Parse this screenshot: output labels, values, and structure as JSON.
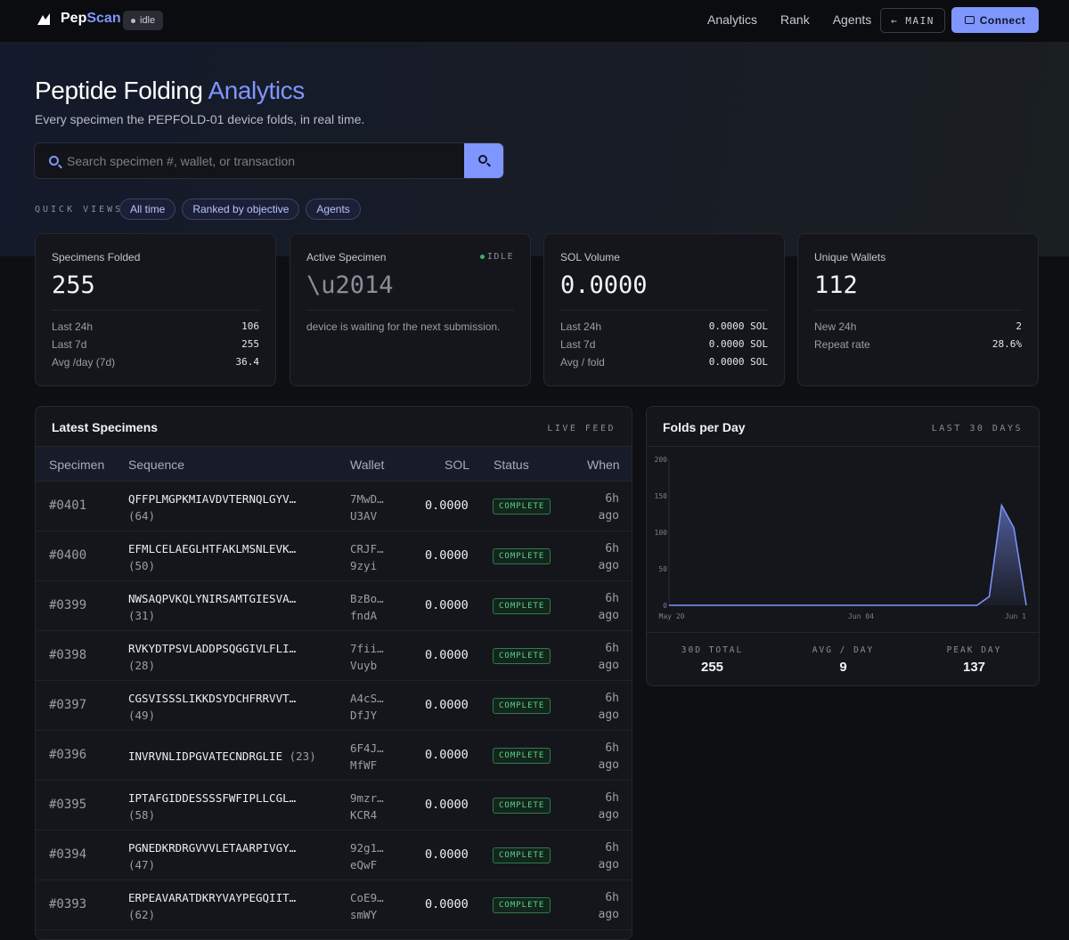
{
  "nav": {
    "brand": "Pep",
    "brand_accent": "Scan",
    "status": "idle",
    "links": [
      "Analytics",
      "Rank",
      "Agents"
    ],
    "main_label": "← MAIN",
    "connect_label": "Connect"
  },
  "hero": {
    "title": "Peptide Folding",
    "title_accent": "Analytics",
    "subtitle": "Every specimen the PEPFOLD-01 device folds, in real time.",
    "search_placeholder": "Search specimen #, wallet, or transaction",
    "quick_views_label": "QUICK VIEWS",
    "chips": [
      "All time",
      "Ranked by objective",
      "Agents"
    ]
  },
  "cards": {
    "folded": {
      "label": "Specimens Folded",
      "value": "255",
      "rows": [
        [
          "Last 24h",
          "106"
        ],
        [
          "Last 7d",
          "255"
        ],
        [
          "Avg /day (7d)",
          "36.4"
        ]
      ]
    },
    "active": {
      "label": "Active Specimen",
      "tag": "IDLE",
      "value": "\\u2014",
      "note": "device is waiting for the next submission."
    },
    "sol": {
      "label": "SOL Volume",
      "value": "0.0000",
      "rows": [
        [
          "Last 24h",
          "0.0000 SOL"
        ],
        [
          "Last 7d",
          "0.0000 SOL"
        ],
        [
          "Avg / fold",
          "0.0000 SOL"
        ]
      ]
    },
    "wallets": {
      "label": "Unique Wallets",
      "value": "112",
      "rows": [
        [
          "New 24h",
          "2"
        ],
        [
          "Repeat rate",
          "28.6%"
        ]
      ]
    }
  },
  "table": {
    "title": "Latest Specimens",
    "tag": "LIVE FEED",
    "headers": [
      "Specimen",
      "Sequence",
      "Wallet",
      "SOL",
      "Status",
      "When"
    ],
    "rows": [
      {
        "id": "#0401",
        "seq": "QFFPLMGPKMIAVDVTERNQLGYV…",
        "len": "(64)",
        "w1": "7MwD…",
        "w2": "U3AV",
        "sol": "0.0000",
        "status": "COMPLETE",
        "t1": "6h",
        "t2": "ago"
      },
      {
        "id": "#0400",
        "seq": "EFMLCELAEGLHTFAKLMSNLEVK…",
        "len": "(50)",
        "w1": "CRJF…",
        "w2": "9zyi",
        "sol": "0.0000",
        "status": "COMPLETE",
        "t1": "6h",
        "t2": "ago"
      },
      {
        "id": "#0399",
        "seq": "NWSAQPVKQLYNIRSAMTGIESVA…",
        "len": "(31)",
        "w1": "BzBo…",
        "w2": "fndA",
        "sol": "0.0000",
        "status": "COMPLETE",
        "t1": "6h",
        "t2": "ago"
      },
      {
        "id": "#0398",
        "seq": "RVKYDTPSVLADDPSQGGIVLFLI…",
        "len": "(28)",
        "w1": "7fii…",
        "w2": "Vuyb",
        "sol": "0.0000",
        "status": "COMPLETE",
        "t1": "6h",
        "t2": "ago"
      },
      {
        "id": "#0397",
        "seq": "CGSVISSSLIKKDSYDCHFRRVVT…",
        "len": "(49)",
        "w1": "A4cS…",
        "w2": "DfJY",
        "sol": "0.0000",
        "status": "COMPLETE",
        "t1": "6h",
        "t2": "ago"
      },
      {
        "id": "#0396",
        "seq": "INVRVNLIDPGVATECNDRGLIE",
        "len": "(23)",
        "w1": "6F4J…",
        "w2": "MfWF",
        "sol": "0.0000",
        "status": "COMPLETE",
        "t1": "6h",
        "t2": "ago",
        "inline": true
      },
      {
        "id": "#0395",
        "seq": "IPTAFGIDDESSSSFWFIPLLCGL…",
        "len": "(58)",
        "w1": "9mzr…",
        "w2": "KCR4",
        "sol": "0.0000",
        "status": "COMPLETE",
        "t1": "6h",
        "t2": "ago"
      },
      {
        "id": "#0394",
        "seq": "PGNEDKRDRGVVVLETAARPIVGY…",
        "len": "(47)",
        "w1": "92g1…",
        "w2": "eQwF",
        "sol": "0.0000",
        "status": "COMPLETE",
        "t1": "6h",
        "t2": "ago"
      },
      {
        "id": "#0393",
        "seq": "ERPEAVARATDKRYVAYPEGQIIT…",
        "len": "(62)",
        "w1": "CoE9…",
        "w2": "smWY",
        "sol": "0.0000",
        "status": "COMPLETE",
        "t1": "6h",
        "t2": "ago"
      }
    ]
  },
  "chart_panel": {
    "title": "Folds per Day",
    "tag": "LAST 30 DAYS",
    "stats": [
      [
        "30D TOTAL",
        "255"
      ],
      [
        "AVG / DAY",
        "9"
      ],
      [
        "PEAK DAY",
        "137"
      ]
    ]
  },
  "chart_data": {
    "type": "area",
    "title": "Folds per Day",
    "y_ticks": [
      "200",
      "150",
      "100",
      "50",
      "0"
    ],
    "x_ticks": [
      "May 20",
      "Jun 04",
      "Jun 1"
    ],
    "ylim": [
      0,
      200
    ],
    "values": [
      0,
      0,
      0,
      0,
      0,
      0,
      0,
      0,
      0,
      0,
      0,
      0,
      0,
      0,
      0,
      0,
      0,
      0,
      0,
      0,
      0,
      0,
      0,
      0,
      0,
      0,
      12,
      137,
      106,
      0
    ],
    "color": "#7f96ff"
  },
  "colors": {
    "accent": "#7f96ff",
    "success": "#5fd08f",
    "background": "#0e0f13"
  }
}
